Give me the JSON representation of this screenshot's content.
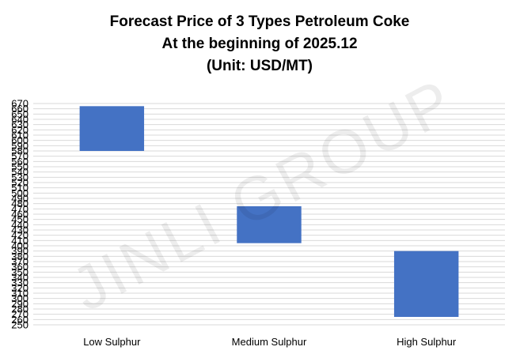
{
  "chart_data": {
    "type": "bar",
    "subtype": "floating-range",
    "title": [
      "Forecast Price of 3 Types Petroleum Coke",
      "At the beginning of 2025.12",
      "(Unit: USD/MT)"
    ],
    "xlabel": "",
    "ylabel": "",
    "categories": [
      "Low Sulphur",
      "Medium Sulphur",
      "High Sulphur"
    ],
    "series": [
      {
        "low": [
          580,
          405,
          265
        ],
        "high": [
          665,
          475,
          390
        ]
      }
    ],
    "ylim": [
      250,
      670
    ],
    "ytick_step": 10,
    "grid": true,
    "legend": "none",
    "bar_color": "#4472C4",
    "watermark": "JINLI GROUP"
  }
}
